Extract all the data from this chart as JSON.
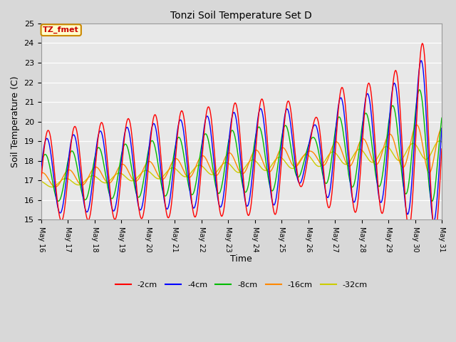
{
  "title": "Tonzi Soil Temperature Set D",
  "xlabel": "Time",
  "ylabel": "Soil Temperature (C)",
  "ylim": [
    15.0,
    25.0
  ],
  "yticks": [
    15.0,
    16.0,
    17.0,
    18.0,
    19.0,
    20.0,
    21.0,
    22.0,
    23.0,
    24.0,
    25.0
  ],
  "label_box_text": "TZ_fmet",
  "label_box_bg": "#ffffcc",
  "label_box_edge": "#cc8800",
  "label_box_text_color": "#cc0000",
  "plot_bg_color": "#e8e8e8",
  "fig_bg_color": "#d8d8d8",
  "series_colors": {
    "-2cm": "#ff0000",
    "-4cm": "#0000ff",
    "-8cm": "#00bb00",
    "-16cm": "#ff8800",
    "-32cm": "#cccc00"
  },
  "legend_labels": [
    "-2cm",
    "-4cm",
    "-8cm",
    "-16cm",
    "-32cm"
  ],
  "x_start": 16,
  "x_end": 31,
  "x_ticks": [
    16,
    17,
    18,
    19,
    20,
    21,
    22,
    23,
    24,
    25,
    26,
    27,
    28,
    29,
    30,
    31
  ]
}
